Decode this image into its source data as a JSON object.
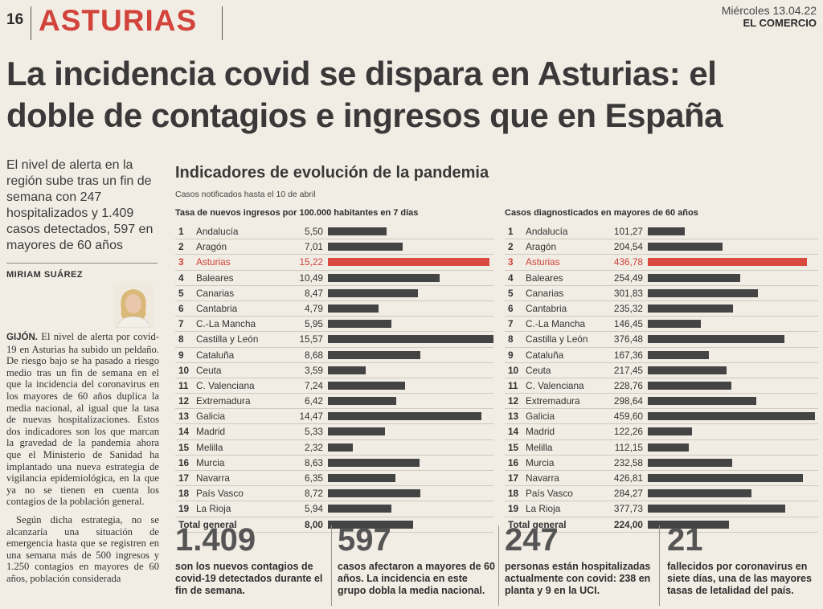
{
  "header": {
    "page_number": "16",
    "section": "ASTURIAS",
    "date": "Miércoles 13.04.22",
    "newspaper": "EL COMERCIO"
  },
  "article": {
    "headline_lines": [
      "La incidencia covid se dispara en Asturias: el",
      "doble de contagios e ingresos que en España"
    ],
    "subhead": "El nivel de alerta en la región sube tras un fin de semana con 247 hospitalizados y 1.409 casos detectados, 597 en mayores de 60 años",
    "author": "MIRIAM SUÁREZ",
    "body_lead": "GIJÓN.",
    "body_p1": " El nivel de alerta por covid-19 en Asturias ha subido un peldaño. De riesgo bajo se ha pasado a riesgo medio tras un fin de semana en el que la incidencia del coronavirus en los mayores de 60 años duplica la media nacional, al igual que la tasa de nuevas hospitalizaciones. Estos dos indicadores son los que marcan la gravedad de la pandemia ahora que el Ministerio de Sanidad ha implantado una nueva estrategia de vigilancia epidemiológica, en la que ya no se tienen en cuenta los contagios de la población general.",
    "body_p2": "Según dicha estrategia, no se alcanzaría una situación de emergencia hasta que se registren en una semana más de 500 ingresos y 1.250 contagios en mayores de 60 años, población considerada"
  },
  "infographic": {
    "title": "Indicadores de evolución de la pandemia",
    "subtitle": "Casos notificados hasta el 10 de abril",
    "total_label": "Total general",
    "highlight_color": "#d84a40",
    "bar_color": "#444444"
  },
  "chart_data": [
    {
      "type": "bar",
      "title": "Tasa de nuevos ingresos por 100.000 habitantes en 7 días",
      "numbers": [
        "1",
        "2",
        "3",
        "4",
        "5",
        "6",
        "7",
        "8",
        "9",
        "10",
        "11",
        "12",
        "13",
        "14",
        "15",
        "16",
        "17",
        "18",
        "19"
      ],
      "categories": [
        "Andalucía",
        "Aragón",
        "Asturias",
        "Baleares",
        "Canarias",
        "Cantabria",
        "C.-La Mancha",
        "Castilla y León",
        "Cataluña",
        "Ceuta",
        "C. Valenciana",
        "Extremadura",
        "Galicia",
        "Madrid",
        "Melilla",
        "Murcia",
        "Navarra",
        "País Vasco",
        "La Rioja"
      ],
      "labels": [
        "5,50",
        "7,01",
        "15,22",
        "10,49",
        "8,47",
        "4,79",
        "5,95",
        "15,57",
        "8,68",
        "3,59",
        "7,24",
        "6,42",
        "14,47",
        "5,33",
        "2,32",
        "8,63",
        "6,35",
        "8,72",
        "5,94"
      ],
      "values": [
        5.5,
        7.01,
        15.22,
        10.49,
        8.47,
        4.79,
        5.95,
        15.57,
        8.68,
        3.59,
        7.24,
        6.42,
        14.47,
        5.33,
        2.32,
        8.63,
        6.35,
        8.72,
        5.94
      ],
      "highlight": "Asturias",
      "total_label": "8,00",
      "total": 8.0
    },
    {
      "type": "bar",
      "title": "Casos diagnosticados en mayores de 60 años",
      "numbers": [
        "1",
        "2",
        "3",
        "4",
        "5",
        "6",
        "7",
        "8",
        "9",
        "10",
        "11",
        "12",
        "13",
        "14",
        "15",
        "16",
        "17",
        "18",
        "19"
      ],
      "categories": [
        "Andalucía",
        "Aragón",
        "Asturias",
        "Baleares",
        "Canarias",
        "Cantabria",
        "C.-La Mancha",
        "Castilla y León",
        "Cataluña",
        "Ceuta",
        "C. Valenciana",
        "Extremadura",
        "Galicia",
        "Madrid",
        "Melilla",
        "Murcia",
        "Navarra",
        "País Vasco",
        "La Rioja"
      ],
      "labels": [
        "101,27",
        "204,54",
        "436,78",
        "254,49",
        "301,83",
        "235,32",
        "146,45",
        "376,48",
        "167,36",
        "217,45",
        "228,76",
        "298,64",
        "459,60",
        "122,26",
        "112,15",
        "232,58",
        "426,81",
        "284,27",
        "377,73"
      ],
      "values": [
        101.27,
        204.54,
        436.78,
        254.49,
        301.83,
        235.32,
        146.45,
        376.48,
        167.36,
        217.45,
        228.76,
        298.64,
        459.6,
        122.26,
        112.15,
        232.58,
        426.81,
        284.27,
        377.73
      ],
      "highlight": "Asturias",
      "total_label": "224,00",
      "total": 224.0
    }
  ],
  "stats": [
    {
      "number": "1.409",
      "caption": "son los nuevos contagios de covid-19 detectados durante el fin de semana."
    },
    {
      "number": "597",
      "caption": "casos afectaron a mayores de 60 años. La incidencia en este grupo dobla la media nacional."
    },
    {
      "number": "247",
      "caption": "personas están hospitalizadas actualmente con covid: 238 en planta y 9 en la UCI."
    },
    {
      "number": "21",
      "caption": "fallecidos por coronavirus en siete días, una de las mayores tasas de letalidad del país."
    }
  ]
}
